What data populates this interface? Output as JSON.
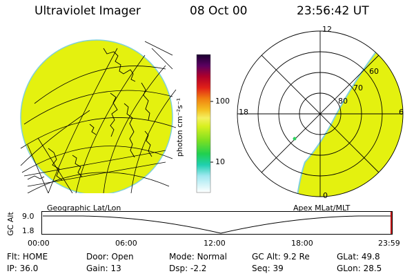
{
  "header": {
    "instrument": "Ultraviolet Imager",
    "date": "08 Oct 00",
    "time": "23:56:42 UT"
  },
  "colorbar": {
    "unit_label": "photon cm⁻²s⁻¹",
    "ticks": [
      "100",
      "10"
    ]
  },
  "geo_panel": {
    "label": "Geographic Lat/Lon"
  },
  "polar_panel": {
    "label": "Apex MLat/MLT",
    "mlt_labels": {
      "top": "12",
      "left": "18",
      "right": "6",
      "bottom": "0"
    },
    "lat_labels": [
      "60",
      "70",
      "80"
    ]
  },
  "altitude_plot": {
    "ylabel": "GC Alt",
    "yticks": [
      "9.0",
      "1.8"
    ],
    "xticks": [
      "00:00",
      "06:00",
      "12:00",
      "18:00",
      "23:59"
    ]
  },
  "status": {
    "row1": [
      {
        "label": "Flt:",
        "value": "HOME"
      },
      {
        "label": "Door:",
        "value": "Open"
      },
      {
        "label": "Mode:",
        "value": "Normal"
      },
      {
        "label": "GC Alt:",
        "value": "9.2 Re"
      },
      {
        "label": "GLat:",
        "value": "49.8"
      }
    ],
    "row2": [
      {
        "label": "IP:",
        "value": "36.0"
      },
      {
        "label": "Gain:",
        "value": "13"
      },
      {
        "label": "Dsp:",
        "value": "-2.2"
      },
      {
        "label": "Seq:",
        "value": "39"
      },
      {
        "label": "GLon:",
        "value": "28.5"
      }
    ]
  },
  "colors": {
    "emission": "#e4f10f",
    "edge": "#7fd0d8"
  }
}
